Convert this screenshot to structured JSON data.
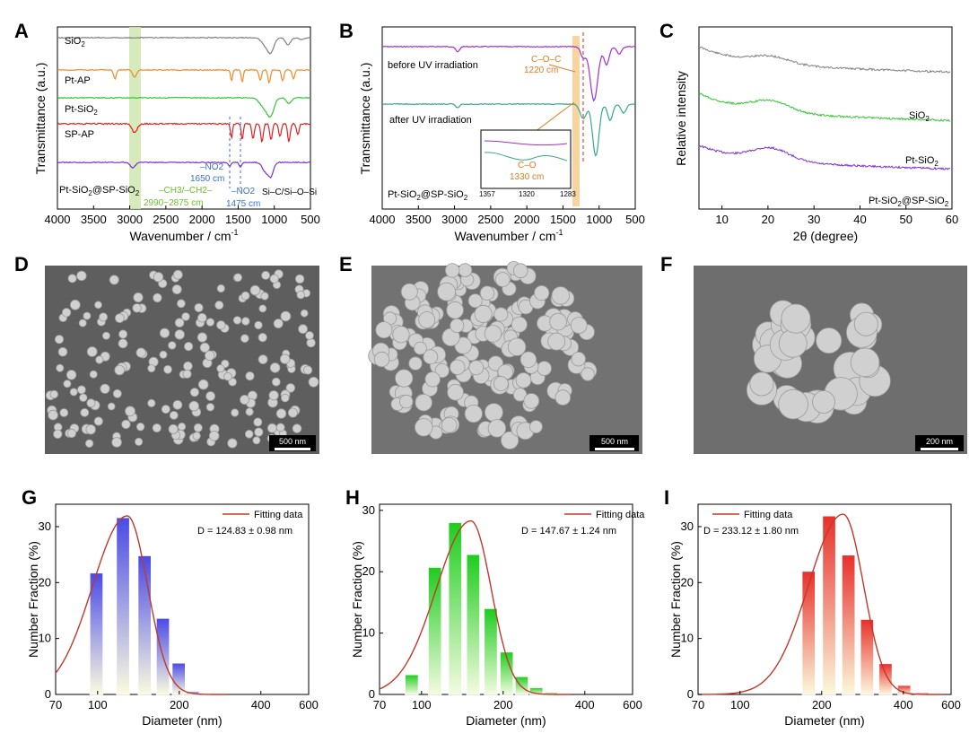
{
  "colors": {
    "sio2": "#808080",
    "ptap": "#f08a24",
    "ptsio2": "#35c535",
    "spap": "#e02020",
    "ptsp": "#7b2fd6",
    "green_band": "#cfe6b0",
    "orange_band": "#f6c98a",
    "blue": "#3a6fd8",
    "orange": "#e07b20",
    "green_text": "#6cbf2a",
    "bar_blue": "#5555e6",
    "bar_green": "#2ecc2e",
    "bar_red": "#e8463a",
    "fit": "#c0392b"
  },
  "panels": {
    "A": {
      "label": "A",
      "xlabel": "Wavenumber / cm",
      "xlabel_sup": "-1",
      "ylabel": "Transmittance (a.u.)",
      "traces": [
        {
          "name": "SiO2",
          "sub": "2"
        },
        {
          "name": "Pt-AP"
        },
        {
          "name": "Pt-SiO2"
        },
        {
          "name": "SP-AP"
        },
        {
          "name": "Pt-SiO2@SP-SiO2"
        }
      ],
      "ann": {
        "ch": "–CH3/–CH2–",
        "chrange": "2990~2875 cm",
        "no2a": "–NO2",
        "no2a_v": "1650 cm",
        "no2b": "–NO2",
        "no2b_v": "1475 cm",
        "sic": "Si–C/Si–O–Si"
      }
    },
    "B": {
      "label": "B",
      "xlabel": "Wavenumber / cm",
      "xlabel_sup": "-1",
      "ylabel": "Transmittance (a.u.)",
      "before": "before UV irradiation",
      "after": "after UV irradiation",
      "sample": "Pt-SiO2@SP-SiO2",
      "coc": "C–O–C",
      "coc_v": "1220 cm",
      "co": "C–O",
      "co_v": "1330 cm",
      "inset_ticks": [
        "1357",
        "1320",
        "1283"
      ]
    },
    "C": {
      "label": "C",
      "xlabel": "2θ (degree)",
      "ylabel": "Relative intensity",
      "traces": [
        "SiO2",
        "Pt-SiO2",
        "Pt-SiO2@SP-SiO2"
      ]
    },
    "D": {
      "label": "D",
      "scale": "500 nm"
    },
    "E": {
      "label": "E",
      "scale": "500 nm"
    },
    "F": {
      "label": "F",
      "scale": "200 nm"
    }
  },
  "chart_data": [
    {
      "type": "line",
      "panel": "A",
      "xlim": [
        4000,
        500
      ],
      "x_ticks": [
        "4000",
        "3500",
        "3000",
        "2500",
        "2000",
        "1500",
        "1000",
        "500"
      ],
      "series": [
        {
          "name": "SiO2"
        },
        {
          "name": "Pt-AP"
        },
        {
          "name": "Pt-SiO2"
        },
        {
          "name": "SP-AP"
        },
        {
          "name": "Pt-SiO2@SP-SiO2"
        }
      ]
    },
    {
      "type": "line",
      "panel": "B",
      "xlim": [
        4000,
        500
      ],
      "x_ticks": [
        "4000",
        "3500",
        "3000",
        "2500",
        "2000",
        "1500",
        "1000",
        "500"
      ],
      "series": [
        {
          "name": "before UV irradiation"
        },
        {
          "name": "after UV irradiation"
        }
      ]
    },
    {
      "type": "line",
      "panel": "C",
      "xlim": [
        5,
        60
      ],
      "x_ticks": [
        "10",
        "20",
        "30",
        "40",
        "50",
        "60"
      ],
      "series": [
        {
          "name": "SiO2"
        },
        {
          "name": "Pt-SiO2"
        },
        {
          "name": "Pt-SiO2@SP-SiO2"
        }
      ]
    },
    {
      "type": "bar",
      "panel": "G",
      "label": "G",
      "xlabel": "Diameter (nm)",
      "ylabel": "Number Fraction (%)",
      "x_ticks": [
        "70",
        "100",
        "200",
        "400",
        "600"
      ],
      "y_ticks": [
        "0",
        "10",
        "20",
        "30"
      ],
      "legend": "Fitting data",
      "stat": "D = 124.83 ± 0.98 nm",
      "ylim": [
        0,
        34
      ],
      "x": [
        99,
        124,
        149,
        174,
        199,
        224
      ],
      "values": [
        21.7,
        31.6,
        24.8,
        13.6,
        5.6,
        0.5
      ],
      "fit_center": 124.83
    },
    {
      "type": "bar",
      "panel": "H",
      "label": "H",
      "xlabel": "Diameter (nm)",
      "ylabel": "Number Fraction (%)",
      "x_ticks": [
        "70",
        "100",
        "200",
        "400",
        "600"
      ],
      "y_ticks": [
        "0",
        "10",
        "20",
        "30"
      ],
      "legend": "Fitting data",
      "stat": "D = 147.67 ± 1.24 nm",
      "ylim": [
        0,
        31
      ],
      "x": [
        92,
        112,
        133,
        155,
        180,
        206,
        234,
        265,
        300
      ],
      "values": [
        3.2,
        20.7,
        28.0,
        22.8,
        14.0,
        6.9,
        2.9,
        1.1,
        0.3
      ],
      "fit_center": 147.67
    },
    {
      "type": "bar",
      "panel": "I",
      "label": "I",
      "xlabel": "Diameter (nm)",
      "ylabel": "Number Fraction (%)",
      "x_ticks": [
        "70",
        "100",
        "200",
        "400",
        "600"
      ],
      "y_ticks": [
        "0",
        "10",
        "20",
        "30"
      ],
      "legend": "Fitting data",
      "stat": "D = 233.12 ± 1.80 nm",
      "ylim": [
        0,
        34
      ],
      "x": [
        179,
        213,
        251,
        294,
        344,
        403,
        470
      ],
      "values": [
        22.0,
        31.9,
        24.9,
        13.4,
        5.5,
        1.6,
        0.3
      ],
      "fit_center": 233.12
    }
  ]
}
